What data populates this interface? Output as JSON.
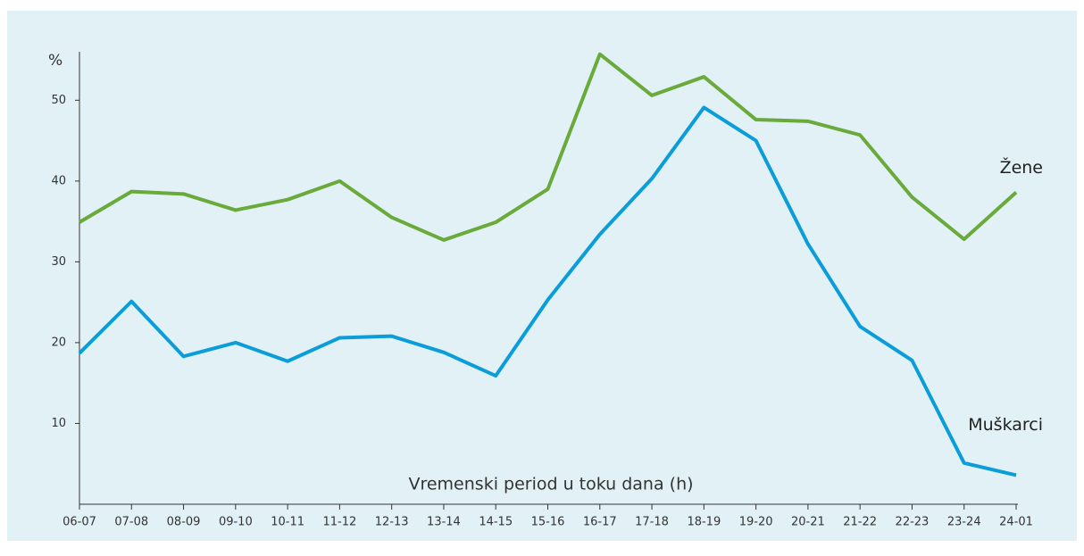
{
  "chart_data": {
    "type": "line",
    "y_label": "%",
    "x_label": "Vremenski period u toku dana (h)",
    "categories": [
      "06-07",
      "07-08",
      "08-09",
      "09-10",
      "10-11",
      "11-12",
      "12-13",
      "13-14",
      "14-15",
      "15-16",
      "16-17",
      "17-18",
      "18-19",
      "19-20",
      "20-21",
      "21-22",
      "22-23",
      "23-24",
      "24-01"
    ],
    "series": [
      {
        "name": "Žene",
        "color": "#6aaa3a",
        "values": [
          34.9,
          38.7,
          38.4,
          36.4,
          37.7,
          40,
          35.5,
          32.7,
          34.9,
          39,
          55.7,
          50.6,
          52.9,
          47.6,
          47.4,
          45.7,
          38,
          32.8,
          38.6
        ]
      },
      {
        "name": "Muškarci",
        "color": "#0a9dd9",
        "values": [
          18.7,
          25.1,
          18.3,
          20,
          17.7,
          20.6,
          20.8,
          18.8,
          15.9,
          25.3,
          33.4,
          40.3,
          49.1,
          45,
          32.2,
          22,
          17.8,
          5.1,
          3.6
        ]
      }
    ],
    "ylim": [
      0,
      56
    ],
    "yticks": [
      10,
      20,
      30,
      40,
      50
    ]
  }
}
